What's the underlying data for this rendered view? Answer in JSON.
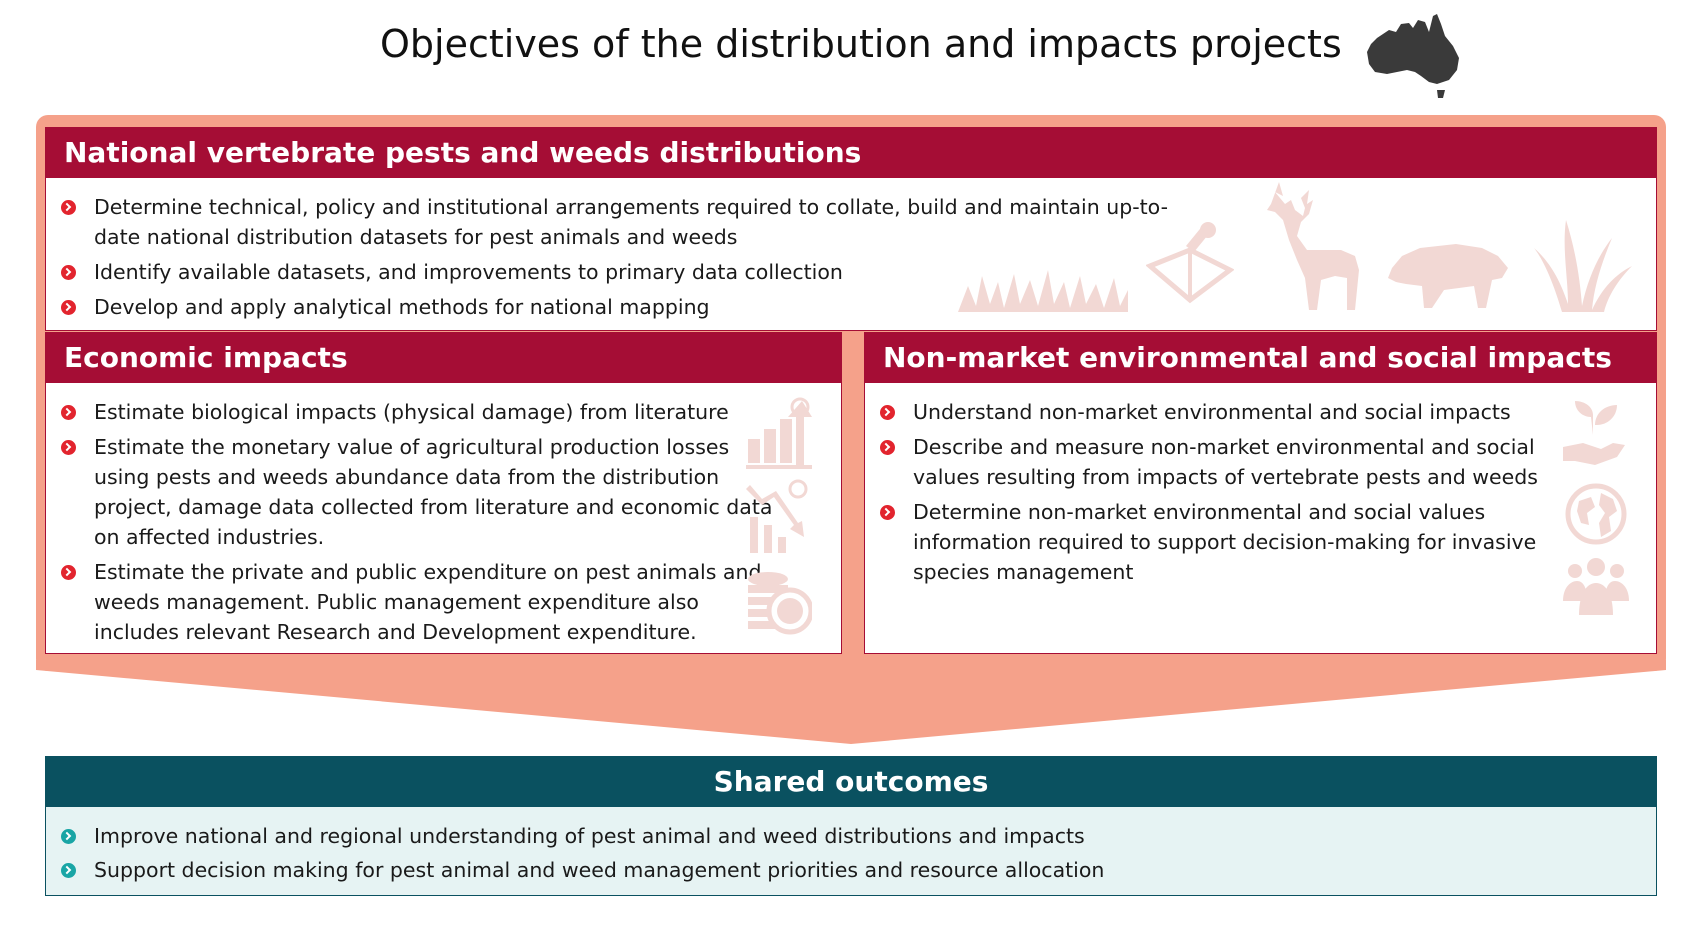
{
  "title": "Objectives of the distribution and impacts projects",
  "icons": {
    "title_icon": "australia-map-icon",
    "distribution": [
      "grass-icon",
      "field-notebook-icon",
      "deer-icon",
      "boar-icon",
      "weed-icon"
    ],
    "economic": [
      "rising-bar-chart-icon",
      "falling-bar-chart-icon",
      "coins-icon"
    ],
    "environmental": [
      "hand-seedling-icon",
      "globe-icon",
      "people-group-icon"
    ]
  },
  "colors": {
    "header_red": "#a50d35",
    "frame_salmon": "#f5a18a",
    "bullet_red": "#e2242e",
    "outcome_teal": "#0a5160",
    "bullet_teal": "#19a5a5",
    "icon_pink": "#f2d8d4"
  },
  "distribution": {
    "heading": "National vertebrate pests and weeds distributions",
    "items": [
      "Determine technical, policy and institutional arrangements required to collate, build and maintain up-to-date national distribution datasets for pest animals and weeds",
      "Identify available datasets, and improvements to primary data collection",
      "Develop and apply analytical methods for national mapping"
    ]
  },
  "economic": {
    "heading": "Economic impacts",
    "items": [
      "Estimate biological impacts (physical damage) from literature",
      "Estimate the monetary value of agricultural production losses using pests and weeds abundance data from the distribution project, damage data collected from literature and economic data on affected industries.",
      "Estimate the private and public expenditure on pest animals and weeds management. Public management expenditure also includes relevant Research and Development expenditure."
    ]
  },
  "environmental": {
    "heading": "Non-market environmental and social impacts",
    "items": [
      "Understand non-market environmental and social impacts",
      "Describe and measure non-market environmental and social values resulting from impacts of vertebrate pests and weeds",
      "Determine non-market environmental and social values information required to support decision-making for invasive species management"
    ]
  },
  "outcomes": {
    "heading": "Shared outcomes",
    "items": [
      "Improve national and regional understanding of pest animal and weed distributions and impacts",
      "Support decision making for pest animal and weed management priorities and resource allocation"
    ]
  }
}
